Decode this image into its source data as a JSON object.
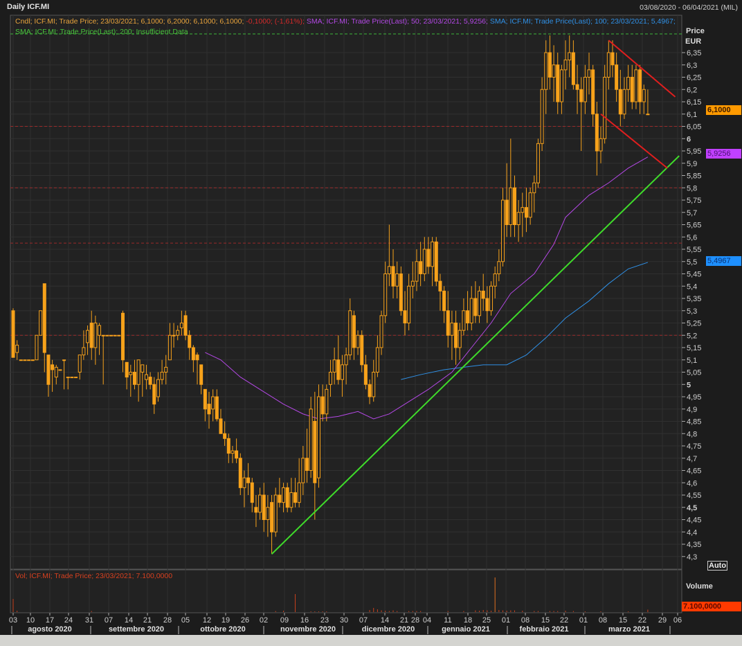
{
  "header": {
    "title": "Daily ICF.MI",
    "date_range": "03/08/2020 - 06/04/2021 (MIL)"
  },
  "legend": {
    "candle": "Cndl; ICF.MI; Trade Price; 23/03/2021; 6,1000; 6,2000; 6,1000; 6,1000;",
    "change": "-0,1000; (-1,61%);",
    "sma50": "SMA; ICF.MI; Trade Price(Last);  50;  23/03/2021; 5,9256;",
    "sma100": "SMA; ICF.MI; Trade Price(Last);  100; 23/03/2021; 5,4967;",
    "sma200": "SMA; ICF.MI; Trade Price(Last);  200; Insufficient Data",
    "volume": "Vol; ICF.MI; Trade Price; 23/03/2021; 7.100,0000"
  },
  "axis": {
    "price_label": "Price",
    "currency": "EUR",
    "auto_label": "Auto",
    "volume_label": "Volume",
    "last_price_badge": "6,1000",
    "sma50_badge": "5,9256",
    "sma100_badge": "5,4967",
    "volume_badge": "7.100,0000"
  },
  "colors": {
    "candle": "#f7a21b",
    "sma50": "#b448e6",
    "sma100": "#2f90e6",
    "trendline_up": "#3fdc2a",
    "trendline_down": "#e01e1e",
    "resistance": "#9c2a2a",
    "top_line": "#3fb83a",
    "last_price_badge": "#ff9a00",
    "sma50_badge": "#c040ff",
    "sma100_badge": "#1e90ff",
    "volume_badge": "#ff3a00",
    "volume": "#c8401c"
  },
  "chart_data": {
    "type": "candlestick",
    "ylim": [
      4.3,
      6.43
    ],
    "yticks": [
      "4,3",
      "4,35",
      "4,4",
      "4,45",
      "4,5",
      "4,55",
      "4,6",
      "4,65",
      "4,7",
      "4,75",
      "4,8",
      "4,85",
      "4,9",
      "4,95",
      "5",
      "5,05",
      "5,1",
      "5,15",
      "5,2",
      "5,25",
      "5,3",
      "5,35",
      "5,4",
      "5,45",
      "5,5",
      "5,55",
      "5,6",
      "5,65",
      "5,7",
      "5,75",
      "5,8",
      "5,85",
      "5,9",
      "5,95",
      "6",
      "6,05",
      "6,1",
      "6,15",
      "6,2",
      "6,25",
      "6,3",
      "6,35"
    ],
    "xticks": [
      "03",
      "10",
      "17",
      "24",
      "31",
      "07",
      "14",
      "21",
      "28",
      "05",
      "12",
      "19",
      "26",
      "02",
      "09",
      "16",
      "23",
      "30",
      "07",
      "14",
      "21",
      "28",
      "04",
      "11",
      "18",
      "25",
      "01",
      "08",
      "15",
      "22",
      "01",
      "08",
      "15",
      "22",
      "29",
      "06"
    ],
    "months": [
      "agosto 2020",
      "settembre 2020",
      "ottobre 2020",
      "novembre 2020",
      "dicembre 2020",
      "gennaio 2021",
      "febbraio 2021",
      "marzo 2021"
    ],
    "ohlc_note_columns": [
      "open",
      "high",
      "low",
      "close"
    ],
    "candles": [
      [
        5.3,
        5.31,
        5.11,
        5.11
      ],
      [
        5.13,
        5.18,
        5.1,
        5.16
      ],
      [
        5.1,
        5.1,
        5.1,
        5.1
      ],
      [
        5.1,
        5.1,
        5.1,
        5.1
      ],
      [
        5.1,
        5.1,
        5.1,
        5.1
      ],
      [
        5.1,
        5.1,
        5.1,
        5.1
      ],
      [
        5.1,
        5.2,
        5.1,
        5.2
      ],
      [
        5.2,
        5.3,
        5.2,
        5.3
      ],
      [
        5.41,
        5.41,
        5.05,
        5.13
      ],
      [
        5.12,
        5.12,
        4.95,
        5.0
      ],
      [
        5.08,
        5.1,
        4.97,
        5.06
      ],
      [
        5.03,
        5.08,
        5.0,
        5.07
      ],
      [
        5.06,
        5.06,
        5.06,
        5.06
      ],
      [
        5.1,
        5.1,
        4.98,
        5.1
      ],
      [
        5.03,
        5.03,
        4.98,
        5.03
      ],
      [
        5.03,
        5.03,
        5.03,
        5.03
      ],
      [
        5.03,
        5.03,
        5.03,
        5.03
      ],
      [
        5.05,
        5.12,
        5.02,
        5.12
      ],
      [
        5.12,
        5.22,
        5.1,
        5.15
      ],
      [
        5.17,
        5.24,
        5.12,
        5.22
      ],
      [
        5.25,
        5.3,
        5.1,
        5.15
      ],
      [
        5.15,
        5.28,
        5.08,
        5.25
      ],
      [
        5.2,
        5.25,
        5.12,
        5.24
      ],
      [
        5.2,
        5.2,
        5.0,
        5.2
      ],
      [
        5.2,
        5.2,
        5.2,
        5.2
      ],
      [
        5.2,
        5.2,
        5.2,
        5.2
      ],
      [
        5.2,
        5.2,
        5.2,
        5.2
      ],
      [
        5.2,
        5.2,
        5.2,
        5.2
      ],
      [
        5.29,
        5.3,
        5.05,
        5.1
      ],
      [
        5.09,
        5.09,
        4.98,
        5.03
      ],
      [
        5.04,
        5.08,
        4.95,
        5.05
      ],
      [
        5.05,
        5.1,
        4.98,
        5.0
      ],
      [
        5.0,
        5.1,
        4.93,
        5.1
      ],
      [
        5.05,
        5.08,
        4.95,
        5.08
      ],
      [
        5.02,
        5.08,
        4.98,
        5.04
      ],
      [
        5.03,
        5.05,
        4.98,
        5.0
      ],
      [
        5.0,
        5.03,
        4.88,
        4.92
      ],
      [
        4.95,
        5.05,
        4.93,
        5.02
      ],
      [
        5.02,
        5.1,
        5.0,
        5.05
      ],
      [
        5.05,
        5.12,
        5.0,
        5.07
      ],
      [
        5.1,
        5.25,
        5.1,
        5.2
      ],
      [
        5.2,
        5.25,
        5.15,
        5.2
      ],
      [
        5.2,
        5.24,
        5.18,
        5.22
      ],
      [
        5.23,
        5.3,
        5.2,
        5.25
      ],
      [
        5.28,
        5.3,
        5.18,
        5.2
      ],
      [
        5.2,
        5.22,
        5.1,
        5.15
      ],
      [
        5.15,
        5.16,
        5.05,
        5.1
      ],
      [
        5.12,
        5.13,
        5.0,
        5.1
      ],
      [
        5.08,
        5.08,
        4.96,
        5.0
      ],
      [
        4.98,
        4.98,
        4.85,
        4.9
      ],
      [
        4.92,
        4.97,
        4.82,
        4.88
      ],
      [
        4.9,
        4.98,
        4.85,
        4.95
      ],
      [
        4.95,
        4.98,
        4.85,
        4.86
      ],
      [
        4.86,
        4.9,
        4.8,
        4.8
      ],
      [
        4.8,
        4.85,
        4.75,
        4.78
      ],
      [
        4.78,
        4.8,
        4.68,
        4.72
      ],
      [
        4.72,
        4.75,
        4.68,
        4.73
      ],
      [
        4.73,
        4.78,
        4.68,
        4.7
      ],
      [
        4.7,
        4.72,
        4.55,
        4.58
      ],
      [
        4.58,
        4.65,
        4.5,
        4.62
      ],
      [
        4.62,
        4.68,
        4.55,
        4.6
      ],
      [
        4.6,
        4.62,
        4.48,
        4.52
      ],
      [
        4.5,
        4.55,
        4.42,
        4.48
      ],
      [
        4.48,
        4.58,
        4.45,
        4.55
      ],
      [
        4.55,
        4.6,
        4.4,
        4.45
      ],
      [
        4.45,
        4.55,
        4.38,
        4.5
      ],
      [
        4.52,
        4.55,
        4.31,
        4.4
      ],
      [
        4.4,
        4.58,
        4.38,
        4.55
      ],
      [
        4.55,
        4.62,
        4.5,
        4.52
      ],
      [
        4.52,
        4.6,
        4.48,
        4.58
      ],
      [
        4.58,
        4.6,
        4.48,
        4.5
      ],
      [
        4.5,
        4.62,
        4.48,
        4.56
      ],
      [
        4.56,
        4.62,
        4.5,
        4.52
      ],
      [
        4.52,
        4.7,
        4.5,
        4.6
      ],
      [
        4.6,
        4.75,
        4.55,
        4.7
      ],
      [
        4.7,
        4.82,
        4.6,
        4.65
      ],
      [
        4.65,
        4.95,
        4.62,
        4.9
      ],
      [
        4.85,
        4.97,
        4.45,
        4.6
      ],
      [
        4.62,
        5.0,
        4.58,
        4.95
      ],
      [
        4.95,
        5.0,
        4.85,
        4.88
      ],
      [
        4.88,
        5.0,
        4.85,
        4.98
      ],
      [
        5.0,
        5.1,
        4.95,
        5.05
      ],
      [
        5.05,
        5.15,
        5.0,
        5.1
      ],
      [
        5.1,
        5.2,
        5.0,
        5.02
      ],
      [
        5.02,
        5.12,
        4.95,
        5.08
      ],
      [
        5.08,
        5.15,
        5.0,
        5.12
      ],
      [
        5.12,
        5.35,
        5.1,
        5.3
      ],
      [
        5.28,
        5.3,
        5.1,
        5.15
      ],
      [
        5.15,
        5.22,
        5.12,
        5.2
      ],
      [
        5.2,
        5.22,
        5.05,
        5.08
      ],
      [
        5.08,
        5.12,
        4.98,
        5.0
      ],
      [
        5.0,
        5.02,
        4.92,
        4.95
      ],
      [
        4.95,
        5.1,
        4.93,
        5.05
      ],
      [
        5.05,
        5.2,
        5.03,
        5.15
      ],
      [
        5.15,
        5.3,
        5.12,
        5.28
      ],
      [
        5.28,
        5.5,
        5.25,
        5.45
      ],
      [
        5.45,
        5.65,
        5.4,
        5.48
      ],
      [
        5.48,
        5.55,
        5.35,
        5.4
      ],
      [
        5.4,
        5.5,
        5.35,
        5.45
      ],
      [
        5.45,
        5.48,
        5.28,
        5.3
      ],
      [
        5.3,
        5.38,
        5.2,
        5.25
      ],
      [
        5.25,
        5.45,
        5.22,
        5.4
      ],
      [
        5.4,
        5.5,
        5.35,
        5.42
      ],
      [
        5.42,
        5.55,
        5.38,
        5.5
      ],
      [
        5.5,
        5.58,
        5.4,
        5.45
      ],
      [
        5.45,
        5.6,
        5.42,
        5.55
      ],
      [
        5.55,
        5.6,
        5.45,
        5.48
      ],
      [
        5.48,
        5.6,
        5.4,
        5.58
      ],
      [
        5.58,
        5.6,
        5.4,
        5.42
      ],
      [
        5.42,
        5.45,
        5.3,
        5.38
      ],
      [
        5.38,
        5.4,
        5.25,
        5.3
      ],
      [
        5.3,
        5.38,
        5.15,
        5.2
      ],
      [
        5.2,
        5.3,
        5.1,
        5.25
      ],
      [
        5.25,
        5.3,
        5.08,
        5.15
      ],
      [
        5.15,
        5.25,
        5.1,
        5.22
      ],
      [
        5.22,
        5.35,
        5.2,
        5.3
      ],
      [
        5.3,
        5.38,
        5.22,
        5.25
      ],
      [
        5.25,
        5.4,
        5.22,
        5.35
      ],
      [
        5.35,
        5.42,
        5.25,
        5.28
      ],
      [
        5.28,
        5.4,
        5.25,
        5.38
      ],
      [
        5.38,
        5.45,
        5.3,
        5.35
      ],
      [
        5.35,
        5.4,
        5.25,
        5.3
      ],
      [
        5.3,
        5.42,
        5.28,
        5.4
      ],
      [
        5.4,
        5.48,
        5.35,
        5.45
      ],
      [
        5.45,
        5.55,
        5.42,
        5.5
      ],
      [
        5.5,
        5.8,
        5.48,
        5.75
      ],
      [
        5.75,
        5.9,
        5.6,
        5.65
      ],
      [
        5.65,
        6.0,
        5.6,
        5.8
      ],
      [
        5.8,
        5.85,
        5.6,
        5.65
      ],
      [
        5.65,
        5.75,
        5.58,
        5.7
      ],
      [
        5.7,
        5.78,
        5.6,
        5.72
      ],
      [
        5.72,
        5.8,
        5.62,
        5.68
      ],
      [
        5.68,
        5.8,
        5.65,
        5.78
      ],
      [
        5.78,
        5.85,
        5.7,
        5.82
      ],
      [
        5.82,
        6.0,
        5.8,
        5.98
      ],
      [
        5.98,
        6.25,
        5.95,
        6.2
      ],
      [
        6.2,
        6.4,
        6.1,
        6.35
      ],
      [
        6.35,
        6.42,
        6.2,
        6.25
      ],
      [
        6.25,
        6.38,
        6.15,
        6.3
      ],
      [
        6.3,
        6.35,
        6.1,
        6.15
      ],
      [
        6.15,
        6.3,
        6.1,
        6.28
      ],
      [
        6.28,
        6.4,
        6.2,
        6.32
      ],
      [
        6.32,
        6.42,
        6.25,
        6.35
      ],
      [
        6.35,
        6.4,
        6.2,
        6.22
      ],
      [
        6.22,
        6.3,
        6.1,
        6.2
      ],
      [
        6.2,
        6.25,
        5.95,
        6.15
      ],
      [
        6.15,
        6.3,
        6.1,
        6.25
      ],
      [
        6.25,
        6.35,
        6.18,
        6.28
      ],
      [
        6.28,
        6.3,
        6.05,
        6.1
      ],
      [
        6.1,
        6.15,
        5.85,
        5.95
      ],
      [
        5.95,
        6.05,
        5.9,
        6.0
      ],
      [
        6.0,
        6.3,
        5.98,
        6.25
      ],
      [
        6.25,
        6.4,
        6.2,
        6.35
      ],
      [
        6.35,
        6.4,
        6.25,
        6.3
      ],
      [
        6.3,
        6.35,
        6.15,
        6.2
      ],
      [
        6.2,
        6.28,
        6.05,
        6.1
      ],
      [
        6.1,
        6.25,
        6.08,
        6.2
      ],
      [
        6.2,
        6.3,
        6.15,
        6.25
      ],
      [
        6.25,
        6.3,
        6.12,
        6.15
      ],
      [
        6.15,
        6.3,
        6.12,
        6.28
      ],
      [
        6.28,
        6.3,
        6.1,
        6.15
      ],
      [
        6.15,
        6.22,
        6.1,
        6.2
      ],
      [
        6.1,
        6.2,
        6.1,
        6.1
      ]
    ],
    "sma50": [
      [
        49,
        5.13
      ],
      [
        53,
        5.1
      ],
      [
        58,
        5.03
      ],
      [
        64,
        4.97
      ],
      [
        69,
        4.92
      ],
      [
        74,
        4.88
      ],
      [
        78,
        4.86
      ],
      [
        83,
        4.87
      ],
      [
        88,
        4.89
      ],
      [
        92,
        4.86
      ],
      [
        96,
        4.88
      ],
      [
        101,
        4.93
      ],
      [
        106,
        4.98
      ],
      [
        112,
        5.05
      ],
      [
        117,
        5.15
      ],
      [
        122,
        5.25
      ],
      [
        127,
        5.37
      ],
      [
        133,
        5.45
      ],
      [
        138,
        5.57
      ],
      [
        141,
        5.68
      ],
      [
        147,
        5.77
      ],
      [
        152,
        5.82
      ],
      [
        157,
        5.88
      ],
      [
        162,
        5.9256
      ]
    ],
    "sma100": [
      [
        99,
        5.02
      ],
      [
        104,
        5.04
      ],
      [
        110,
        5.06
      ],
      [
        115,
        5.07
      ],
      [
        120,
        5.08
      ],
      [
        126,
        5.08
      ],
      [
        131,
        5.12
      ],
      [
        136,
        5.19
      ],
      [
        141,
        5.27
      ],
      [
        147,
        5.34
      ],
      [
        152,
        5.41
      ],
      [
        157,
        5.47
      ],
      [
        162,
        5.4967
      ]
    ],
    "trendlines": [
      {
        "kind": "support",
        "from": [
          66,
          4.31
        ],
        "to": [
          170,
          5.93
        ]
      },
      {
        "kind": "upper-channel",
        "from": [
          152,
          6.4
        ],
        "to": [
          169,
          6.17
        ]
      },
      {
        "kind": "lower-channel",
        "from": [
          150,
          6.1
        ],
        "to": [
          167,
          5.88
        ]
      }
    ],
    "horizontal_levels": [
      6.426,
      6.05,
      5.8,
      5.575,
      5.2
    ],
    "volume": [
      [
        0,
        38000
      ],
      [
        1,
        4000
      ],
      [
        20,
        3000
      ],
      [
        67,
        3000
      ],
      [
        69,
        4000
      ],
      [
        72,
        52000
      ],
      [
        76,
        2000
      ],
      [
        77,
        2000
      ],
      [
        78,
        2000
      ],
      [
        79,
        2000
      ],
      [
        80,
        2000
      ],
      [
        91,
        6000
      ],
      [
        92,
        12000
      ],
      [
        93,
        8000
      ],
      [
        94,
        5000
      ],
      [
        95,
        4000
      ],
      [
        96,
        3000
      ],
      [
        97,
        5000
      ],
      [
        98,
        3000
      ],
      [
        101,
        3000
      ],
      [
        102,
        3000
      ],
      [
        103,
        3000
      ],
      [
        104,
        3000
      ],
      [
        111,
        3000
      ],
      [
        115,
        3000
      ],
      [
        118,
        5000
      ],
      [
        119,
        4000
      ],
      [
        120,
        6000
      ],
      [
        121,
        5000
      ],
      [
        122,
        4000
      ],
      [
        123,
        100000
      ],
      [
        124,
        6000
      ],
      [
        125,
        5000
      ],
      [
        126,
        4000
      ],
      [
        127,
        5000
      ],
      [
        128,
        5000
      ],
      [
        130,
        4000
      ],
      [
        133,
        3000
      ],
      [
        134,
        3000
      ],
      [
        137,
        3000
      ],
      [
        138,
        3000
      ],
      [
        139,
        3000
      ],
      [
        141,
        4000
      ],
      [
        143,
        3000
      ],
      [
        146,
        2000
      ],
      [
        150,
        2000
      ],
      [
        157,
        2000
      ],
      [
        162,
        7100
      ]
    ],
    "grid": true
  }
}
